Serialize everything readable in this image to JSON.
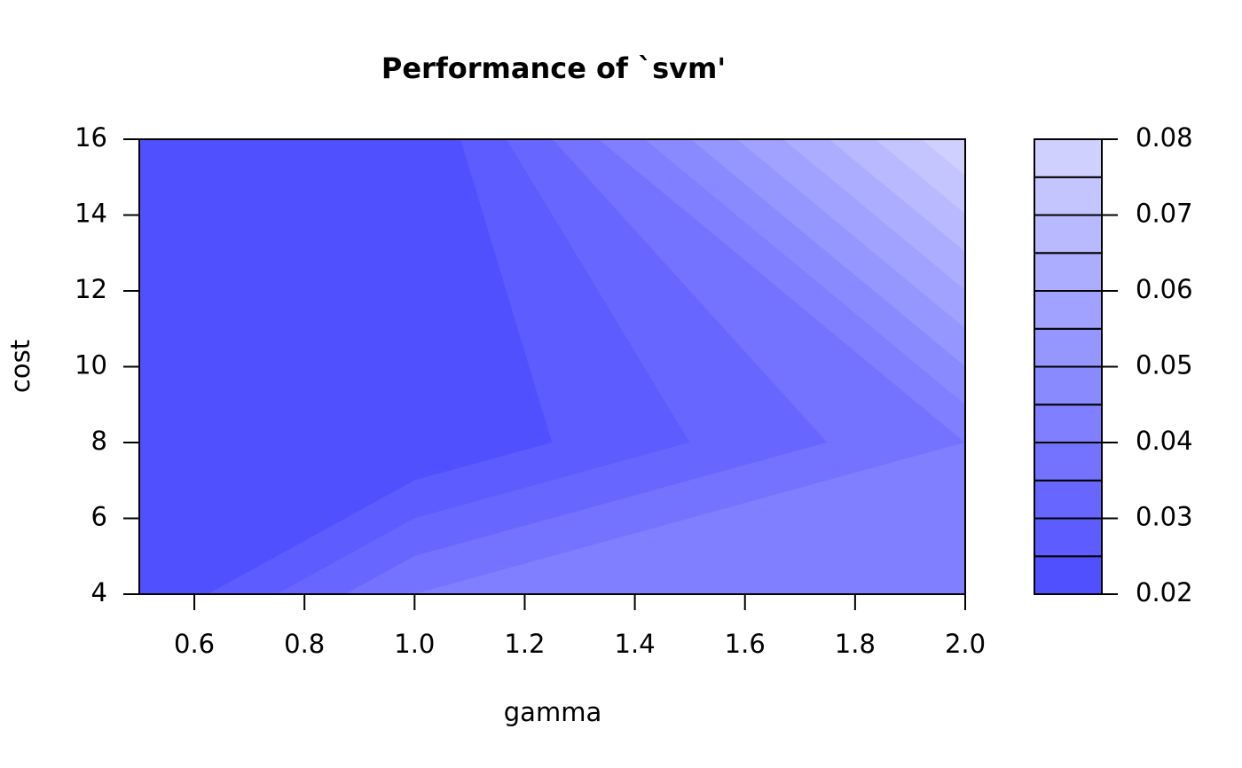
{
  "chart_data": {
    "type": "filled_contour",
    "title": "Performance of `svm'",
    "x_label": "gamma",
    "y_label": "cost",
    "x": [
      0.5,
      1,
      2
    ],
    "y": [
      4,
      8,
      16
    ],
    "z": [
      [
        0.02,
        0.02,
        0.02
      ],
      [
        0.04,
        0.02,
        0.02
      ],
      [
        0.0445,
        0.04,
        0.0797
      ]
    ],
    "levels": [
      0.02,
      0.025,
      0.03,
      0.035,
      0.04,
      0.045,
      0.05,
      0.055,
      0.06,
      0.065,
      0.07,
      0.075,
      0.08
    ],
    "colors": [
      "#5050FF",
      "#5C5CFF",
      "#6767FF",
      "#7373FF",
      "#7F7FFF",
      "#8A8AFF",
      "#9696FF",
      "#A1A1FF",
      "#ADADFF",
      "#B9B9FF",
      "#C4C4FF",
      "#D0D0FF"
    ],
    "xlim": [
      0.5,
      2
    ],
    "ylim": [
      4,
      16
    ],
    "zlim": [
      0.02,
      0.08
    ],
    "xticks": [
      0.6,
      0.8,
      {
        "value": 1,
        "label": "1.0"
      },
      1.2,
      1.4,
      1.6,
      1.8,
      {
        "value": 2,
        "label": "2.0"
      }
    ],
    "yticks": [
      4,
      6,
      8,
      10,
      12,
      14,
      16
    ],
    "zticks": [
      0.02,
      0.03,
      0.04,
      0.05,
      0.06,
      0.07,
      0.08
    ]
  }
}
